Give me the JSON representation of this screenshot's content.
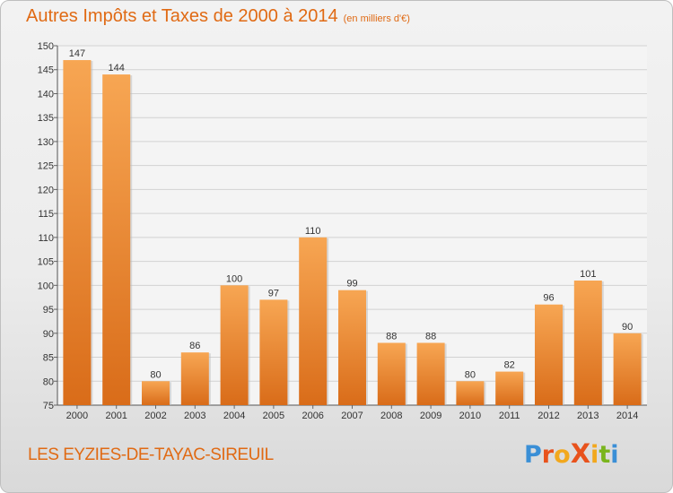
{
  "header": {
    "title": "Autres Impôts et Taxes de 2000 à 2014",
    "subtitle": "(en milliers d'€)"
  },
  "footer": {
    "commune": "LES EYZIES-DE-TAYAC-SIREUIL",
    "logo_text": "ProXiti"
  },
  "colors": {
    "bar_top": "#f7a653",
    "bar_bottom": "#d96c19",
    "accent": "#e06a14"
  },
  "chart_data": {
    "type": "bar",
    "title": "Autres Impôts et Taxes de 2000 à 2014",
    "subtitle": "(en milliers d'€)",
    "categories": [
      "2000",
      "2001",
      "2002",
      "2003",
      "2004",
      "2005",
      "2006",
      "2007",
      "2008",
      "2009",
      "2010",
      "2011",
      "2012",
      "2013",
      "2014"
    ],
    "values": [
      147,
      144,
      80,
      86,
      100,
      97,
      110,
      99,
      88,
      88,
      80,
      82,
      96,
      101,
      90
    ],
    "ylim": [
      75,
      150
    ],
    "yticks": [
      75,
      80,
      85,
      90,
      95,
      100,
      105,
      110,
      115,
      120,
      125,
      130,
      135,
      140,
      145,
      150
    ],
    "grid": true,
    "data_labels": true
  }
}
